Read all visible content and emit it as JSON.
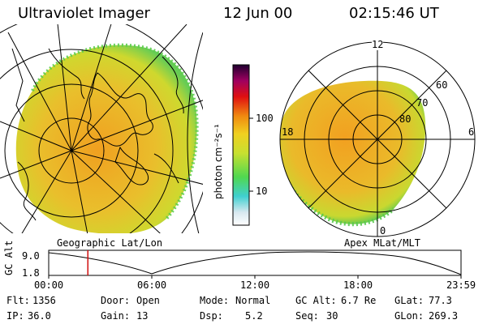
{
  "header": {
    "title": "Ultraviolet Imager",
    "date": "12 Jun 00",
    "time": "02:15:46 UT"
  },
  "colorbar": {
    "label": "photon cm⁻²s⁻¹",
    "ticks": [
      "100",
      "10"
    ]
  },
  "left_panel": {
    "caption": "Geographic Lat/Lon"
  },
  "right_panel": {
    "caption": "Apex MLat/MLT",
    "mlt_labels": [
      "12",
      "18",
      "6",
      "0"
    ],
    "mlat_labels": [
      "60",
      "70",
      "80"
    ]
  },
  "altitude_plot": {
    "ylabel": "GC Alt",
    "yticks": [
      "9.0",
      "1.8"
    ],
    "xticks": [
      "00:00",
      "06:00",
      "12:00",
      "18:00",
      "23:59"
    ],
    "current_time_fraction": 0.095
  },
  "info": {
    "flt_label": "Flt:",
    "flt": "1356",
    "door_label": "Door:",
    "door": "Open",
    "mode_label": "Mode:",
    "mode": "Normal",
    "gcalt_label": "GC Alt:",
    "gcalt": "6.7 Re",
    "glat_label": "GLat:",
    "glat": "77.3",
    "ip_label": "IP:",
    "ip": "36.0",
    "gain_label": "Gain:",
    "gain": "13",
    "dsp_label": "Dsp:",
    "dsp": "5.2",
    "seq_label": "Seq:",
    "seq": "30",
    "glon_label": "GLon:",
    "glon": "269.3"
  },
  "colors": {
    "image_fill_outer": "#d6d62a",
    "image_fill_inner": "#f0a020",
    "image_edge": "#55c855",
    "marker": "#d01010"
  }
}
